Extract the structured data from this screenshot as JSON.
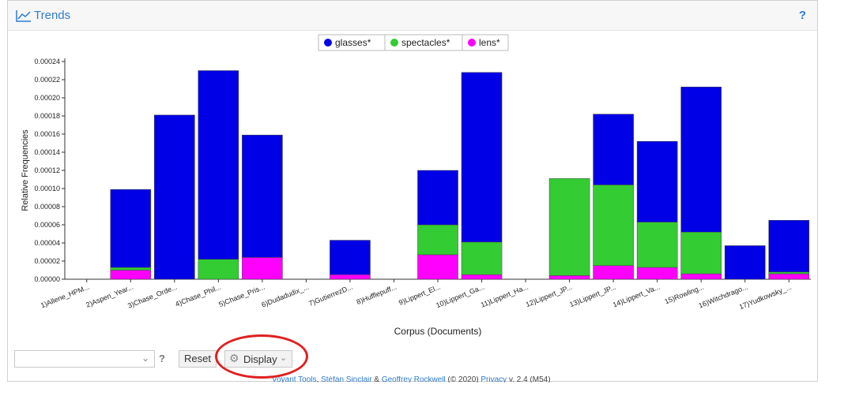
{
  "panel": {
    "title": "Trends",
    "help": "?"
  },
  "toolbar": {
    "select_value": "",
    "select_help": "?",
    "reset_label": "Reset",
    "display_label": "Display"
  },
  "footer": {
    "voyant": "Voyant Tools",
    "sep1": ", ",
    "author1": "Stéfan Sinclair",
    "amp": " & ",
    "author2": "Geoffrey Rockwell",
    "year": " (© 2020) ",
    "privacy": "Privacy",
    "version": " v. 2.4 (M54)"
  },
  "colors": {
    "glasses": "#0000e6",
    "spectacles": "#33cc33",
    "lens": "#ff00ff",
    "annotation": "#e02020",
    "accent": "#2f7bd0"
  },
  "icons": [
    "line-chart-icon",
    "help-icon",
    "chevron-down-icon",
    "gear-icon"
  ],
  "chart_data": {
    "type": "bar",
    "stacked": true,
    "xlabel": "Corpus (Documents)",
    "ylabel": "Relative Frequencies",
    "ylim": [
      0,
      0.00024
    ],
    "yticks": [
      "0.00000",
      "0.00002",
      "0.00004",
      "0.00006",
      "0.00008",
      "0.00010",
      "0.00012",
      "0.00014",
      "0.00016",
      "0.00018",
      "0.00020",
      "0.00022",
      "0.00024"
    ],
    "legend_position": "top-center",
    "categories": [
      "1)Allene_HPM...",
      "2)Aspen_Year...",
      "3)Chase_Orde...",
      "4)Chase_Phil...",
      "5)Chase_Pris...",
      "6)Dudadudix_...",
      "7)GutierrezD...",
      "8)Hufflepuff...",
      "9)Lippert_El...",
      "10)Lippert_Ga...",
      "11)Lippert_Ha...",
      "12)Lippert_JP...",
      "13)Lippert_JP...",
      "14)Lippert_Va...",
      "15)Rowling...",
      "16)Witchdrago...",
      "17)Yudkowsky_..."
    ],
    "series": [
      {
        "name": "lens*",
        "values": [
          0,
          1e-05,
          0,
          0,
          2.4e-05,
          0,
          5e-06,
          0,
          2.7e-05,
          5e-06,
          0,
          4e-06,
          1.5e-05,
          1.3e-05,
          6e-06,
          0,
          6e-06
        ]
      },
      {
        "name": "spectacles*",
        "values": [
          0,
          3e-06,
          0,
          2.2e-05,
          0,
          0,
          0,
          0,
          3.3e-05,
          3.6e-05,
          0,
          0.000107,
          8.9e-05,
          5e-05,
          4.6e-05,
          0,
          2e-06
        ]
      },
      {
        "name": "glasses*",
        "values": [
          0,
          8.6e-05,
          0.000181,
          0.000208,
          0.000135,
          0,
          3.8e-05,
          0,
          6e-05,
          0.000187,
          0,
          0,
          7.8e-05,
          8.9e-05,
          0.00016,
          3.7e-05,
          5.7e-05
        ]
      }
    ],
    "legend": [
      "glasses*",
      "spectacles*",
      "lens*"
    ]
  }
}
